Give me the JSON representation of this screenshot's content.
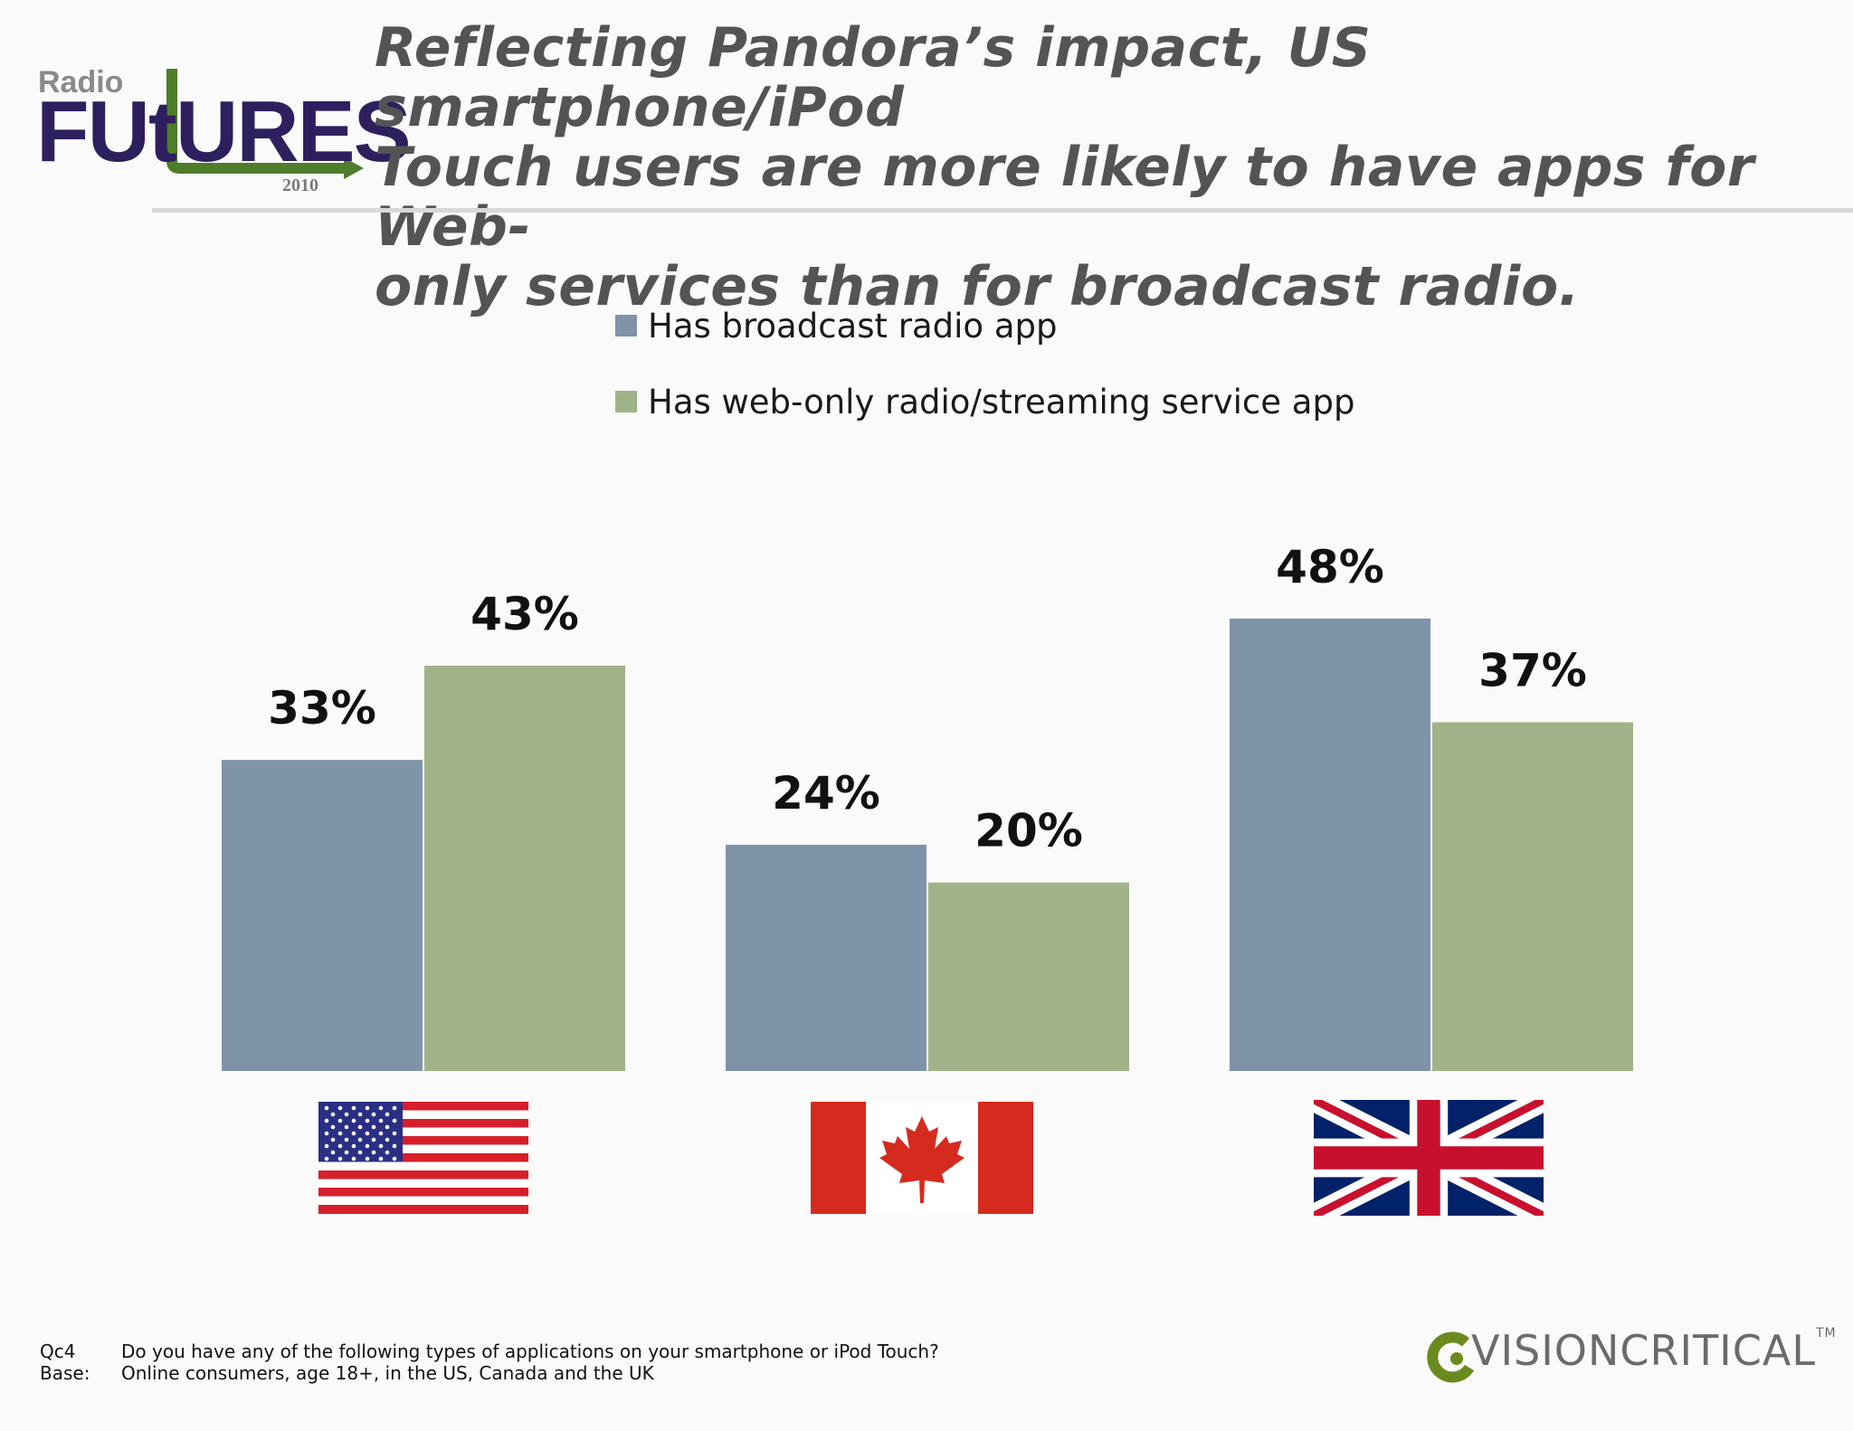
{
  "header": {
    "logo": {
      "word1": "Radio",
      "word2": "FUtURES",
      "year": "2010"
    },
    "title_lines": [
      "Reflecting Pandora’s impact, US smartphone/iPod",
      "Touch users are more likely to have apps for Web-",
      "only services than for broadcast radio."
    ]
  },
  "colors": {
    "broadcast": "#7f93a9",
    "web": "#a0b388",
    "title": "#545454",
    "logo_navy": "#2e1f5e",
    "logo_green": "#4e7d2c"
  },
  "chart_data": {
    "type": "bar",
    "categories": [
      "US",
      "Canada",
      "UK"
    ],
    "category_icons": [
      "us-flag-icon",
      "canada-flag-icon",
      "uk-flag-icon"
    ],
    "series": [
      {
        "name": "Has broadcast radio app",
        "values": [
          33,
          24,
          48
        ],
        "labels": [
          "33%",
          "24%",
          "48%"
        ]
      },
      {
        "name": "Has web-only radio/streaming service app",
        "values": [
          43,
          20,
          37
        ],
        "labels": [
          "43%",
          "20%",
          "37%"
        ]
      }
    ],
    "unit": "%",
    "ylim": [
      0,
      60
    ],
    "grid": false,
    "legend_position": "top-center"
  },
  "footnote": {
    "rows": [
      {
        "code": "Qc4",
        "text": "Do you have any of the following types of applications on your smartphone or iPod Touch?"
      },
      {
        "code": "Base:",
        "text": "Online consumers, age 18+, in the US, Canada and the UK"
      }
    ]
  },
  "brand": {
    "name": "VISIONCRITICAL",
    "tm": "TM"
  }
}
